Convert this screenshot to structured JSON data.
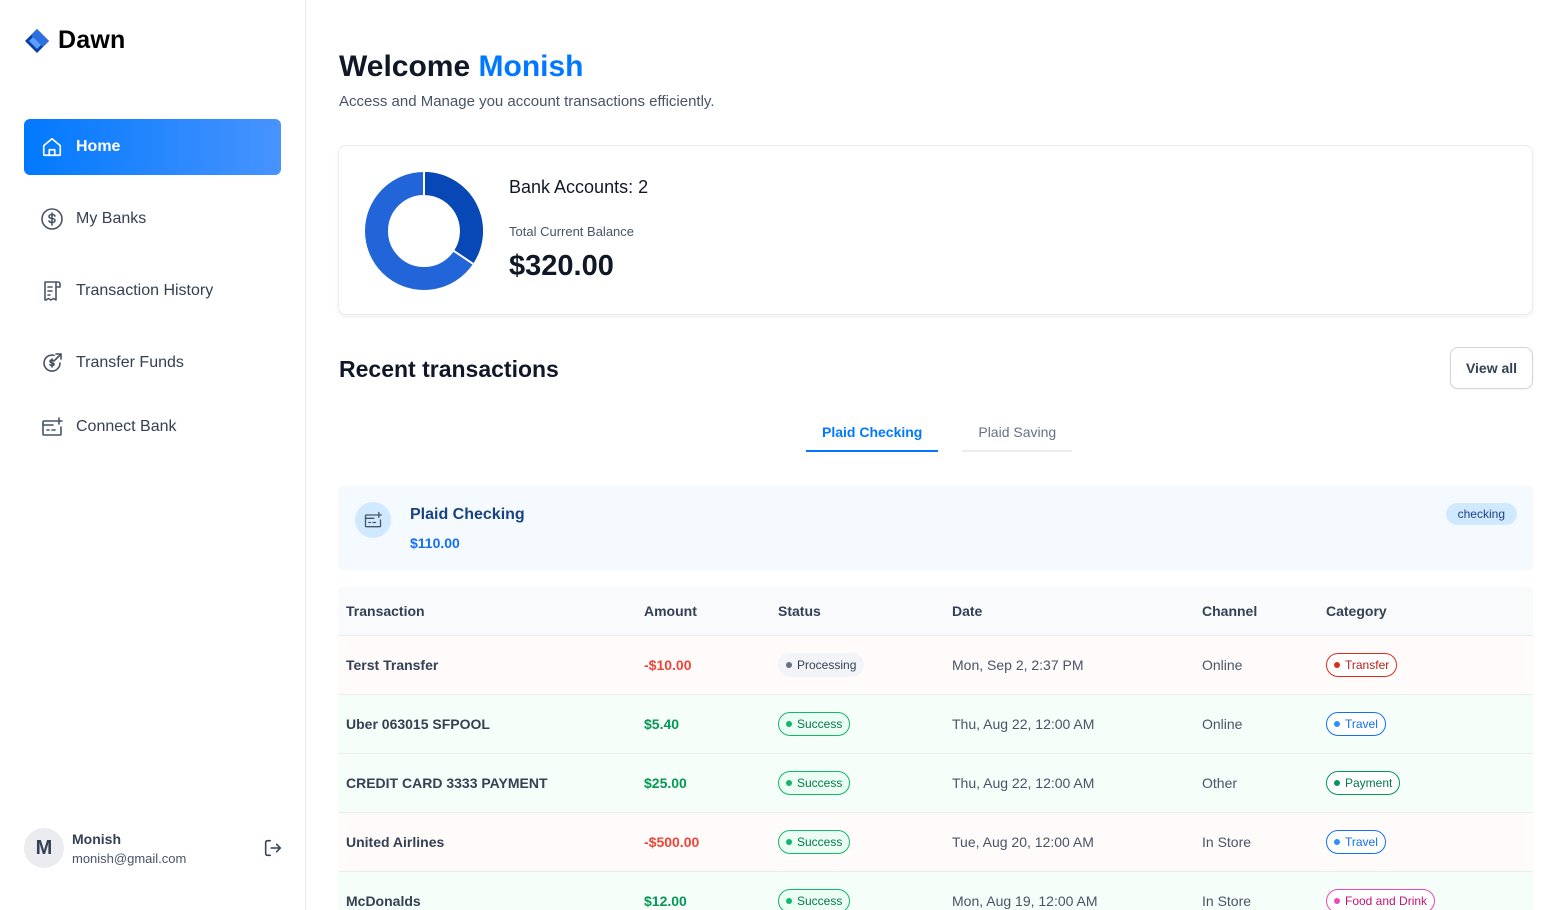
{
  "app": {
    "name": "Dawn"
  },
  "sidebar": {
    "items": [
      {
        "label": "Home",
        "icon": "home-icon",
        "active": true
      },
      {
        "label": "My Banks",
        "icon": "dollar-circle-icon",
        "active": false
      },
      {
        "label": "Transaction History",
        "icon": "receipt-icon",
        "active": false
      },
      {
        "label": "Transfer Funds",
        "icon": "transfer-icon",
        "active": false
      },
      {
        "label": "Connect Bank",
        "icon": "card-plus-icon",
        "active": false
      }
    ],
    "user": {
      "initial": "M",
      "name": "Monish",
      "email": "monish@gmail.com"
    }
  },
  "header": {
    "welcome_prefix": "Welcome",
    "user_name": "Monish",
    "subtitle": "Access and Manage you account transactions efficiently."
  },
  "balance": {
    "bank_accounts_label": "Bank Accounts: 2",
    "total_label": "Total Current Balance",
    "total_amount": "$320.00",
    "chart_colors": [
      "#0747b6",
      "#2265d8"
    ]
  },
  "recent": {
    "title": "Recent transactions",
    "view_all_label": "View all",
    "tabs": [
      "Plaid Checking",
      "Plaid Saving"
    ]
  },
  "account": {
    "name": "Plaid Checking",
    "balance": "$110.00",
    "type": "checking"
  },
  "table": {
    "headers": [
      "Transaction",
      "Amount",
      "Status",
      "Date",
      "Channel",
      "Category"
    ],
    "rows": [
      {
        "name": "Terst Transfer",
        "amount": "-$10.00",
        "status": "Processing",
        "date": "Mon, Sep 2, 2:37 PM",
        "channel": "Online",
        "category": "Transfer"
      },
      {
        "name": "Uber 063015 SFPOOL",
        "amount": "$5.40",
        "status": "Success",
        "date": "Thu, Aug 22, 12:00 AM",
        "channel": "Online",
        "category": "Travel"
      },
      {
        "name": "CREDIT CARD 3333 PAYMENT",
        "amount": "$25.00",
        "status": "Success",
        "date": "Thu, Aug 22, 12:00 AM",
        "channel": "Other",
        "category": "Payment"
      },
      {
        "name": "United Airlines",
        "amount": "-$500.00",
        "status": "Success",
        "date": "Tue, Aug 20, 12:00 AM",
        "channel": "In Store",
        "category": "Travel"
      },
      {
        "name": "McDonalds",
        "amount": "$12.00",
        "status": "Success",
        "date": "Mon, Aug 19, 12:00 AM",
        "channel": "In Store",
        "category": "Food and Drink"
      }
    ]
  }
}
